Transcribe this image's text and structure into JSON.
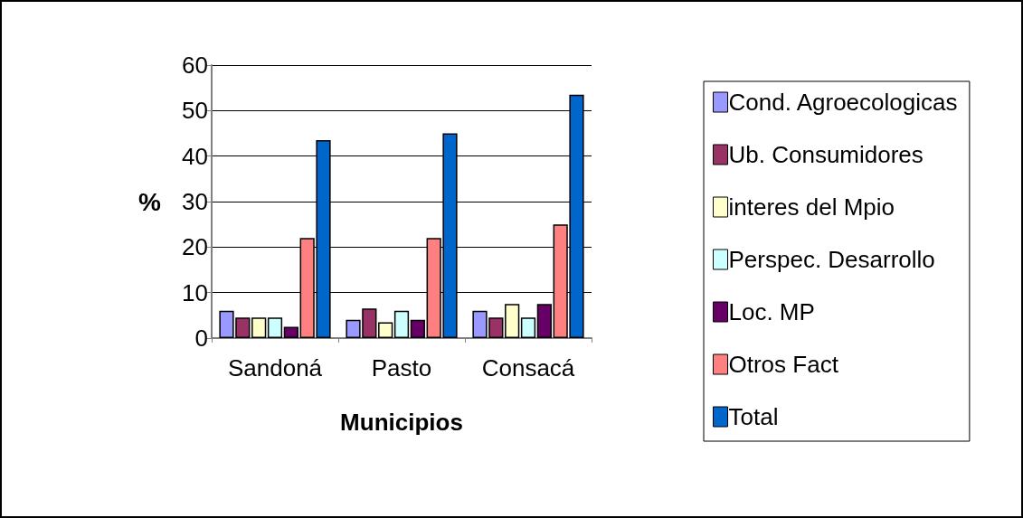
{
  "chart_data": {
    "type": "bar",
    "xlabel": "Municipios",
    "ylabel": "%",
    "categories": [
      "Sandoná",
      "Pasto",
      "Consacá"
    ],
    "series": [
      {
        "name": "Cond. Agroecologicas",
        "color": "#9999ff",
        "values": [
          6,
          4,
          6
        ]
      },
      {
        "name": "Ub. Consumidores",
        "color": "#993366",
        "values": [
          4.5,
          6.5,
          4.5
        ]
      },
      {
        "name": "interes del Mpio",
        "color": "#ffffcc",
        "values": [
          4.5,
          3.5,
          7.5
        ]
      },
      {
        "name": "Perspec. Desarrollo",
        "color": "#ccffff",
        "values": [
          4.5,
          6,
          4.5
        ]
      },
      {
        "name": "Loc. MP",
        "color": "#660066",
        "values": [
          2.5,
          4,
          7.5
        ]
      },
      {
        "name": "Otros Fact",
        "color": "#ff8080",
        "values": [
          22,
          22,
          25
        ]
      },
      {
        "name": "Total",
        "color": "#0066cc",
        "values": [
          43.5,
          45,
          53.5
        ]
      }
    ],
    "ylim": [
      0,
      60
    ],
    "yticks": [
      0,
      10,
      20,
      30,
      40,
      50,
      60
    ],
    "grid": "y",
    "legend": "right"
  }
}
